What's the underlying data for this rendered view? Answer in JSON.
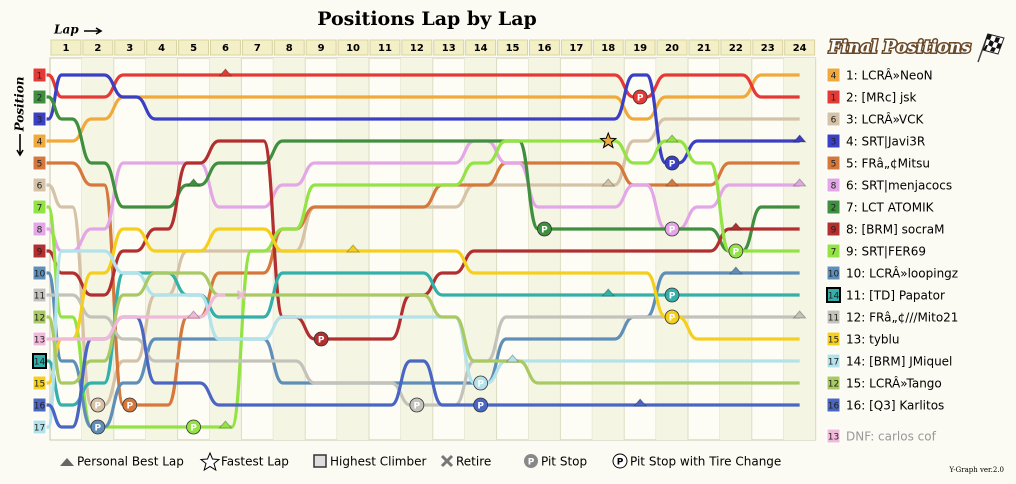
{
  "chart_data": {
    "type": "lap_chart",
    "title": "Positions Lap by Lap",
    "x_label": "Lap",
    "y_label": "Position",
    "subtitle": "Final Positions",
    "laps": [
      1,
      2,
      3,
      4,
      5,
      6,
      7,
      8,
      9,
      10,
      11,
      12,
      13,
      14,
      15,
      16,
      17,
      18,
      19,
      20,
      21,
      22,
      23,
      24
    ],
    "pit_symbol": "P",
    "series": [
      {
        "name": "1: LCRÂ»NeoN",
        "color": "#f2a93b",
        "start": 4,
        "values": [
          4,
          3,
          2,
          2,
          2,
          2,
          2,
          2,
          2,
          2,
          2,
          2,
          2,
          2,
          2,
          2,
          2,
          2,
          3,
          2,
          2,
          2,
          1,
          1
        ]
      },
      {
        "name": "2: [MRc] jsk",
        "color": "#e53935",
        "start": 1,
        "values": [
          2,
          2,
          1,
          1,
          1,
          1,
          1,
          1,
          1,
          1,
          1,
          1,
          1,
          1,
          1,
          1,
          1,
          1,
          2,
          1,
          1,
          1,
          2,
          2
        ],
        "pits": [
          19
        ],
        "pb_laps": [
          6
        ]
      },
      {
        "name": "3: LCRÂ»VCK",
        "color": "#d6c2a6",
        "start": 6,
        "values": [
          7,
          16,
          14,
          11,
          9,
          9,
          9,
          9,
          7,
          7,
          7,
          7,
          7,
          6,
          6,
          6,
          6,
          6,
          4,
          3,
          3,
          3,
          3,
          3
        ],
        "pits": [
          2
        ],
        "pb_laps": [
          18
        ]
      },
      {
        "name": "4: SRT|Javi3R",
        "color": "#3a3fc4",
        "start": 3,
        "values": [
          1,
          1,
          2,
          3,
          3,
          3,
          3,
          3,
          3,
          3,
          3,
          3,
          3,
          3,
          3,
          3,
          3,
          3,
          1,
          5,
          4,
          4,
          4,
          4
        ],
        "pits": [
          20
        ],
        "pb_laps": [
          24
        ]
      },
      {
        "name": "5: FRâ„¢Mitsu",
        "color": "#d6783c",
        "start": 5,
        "values": [
          5,
          6,
          16,
          16,
          12,
          10,
          10,
          8,
          7,
          7,
          7,
          7,
          6,
          6,
          5,
          5,
          5,
          5,
          6,
          6,
          6,
          5,
          5,
          5
        ],
        "pits": [
          3
        ],
        "pb_laps": [
          20
        ]
      },
      {
        "name": "6: SRT|menjacocs",
        "color": "#e3a6e6",
        "start": 8,
        "values": [
          9,
          8,
          5,
          5,
          5,
          7,
          7,
          6,
          5,
          5,
          5,
          5,
          5,
          4,
          5,
          7,
          7,
          7,
          6,
          8,
          7,
          6,
          6,
          6
        ],
        "pits": [
          20
        ],
        "pb_laps": [
          24
        ]
      },
      {
        "name": "7: LCT ATOMIK",
        "color": "#3f8f3f",
        "start": 2,
        "values": [
          3,
          5,
          7,
          7,
          6,
          5,
          5,
          4,
          4,
          4,
          4,
          4,
          4,
          4,
          4,
          8,
          8,
          8,
          8,
          8,
          8,
          9,
          7,
          7
        ],
        "pits": [
          16
        ],
        "pb_laps": [
          5
        ]
      },
      {
        "name": "8: [BRM] socraM",
        "color": "#b22f2f",
        "start": 9,
        "values": [
          10,
          11,
          9,
          8,
          5,
          4,
          4,
          12,
          13,
          13,
          13,
          11,
          10,
          9,
          9,
          9,
          9,
          9,
          9,
          9,
          9,
          8,
          8,
          8
        ],
        "pits": [
          9
        ],
        "pb_laps": [
          22
        ]
      },
      {
        "name": "9: SRT|FER69",
        "color": "#93e345",
        "start": 7,
        "values": [
          12,
          17,
          17,
          17,
          17,
          17,
          9,
          8,
          6,
          6,
          6,
          6,
          6,
          5,
          4,
          4,
          4,
          4,
          5,
          4,
          5,
          9,
          9,
          9
        ],
        "pits": [
          5,
          22
        ],
        "pb_laps": [
          6,
          20
        ]
      },
      {
        "name": "10: LCRÂ»loopingz",
        "color": "#5f8fb8",
        "start": 10,
        "values": [
          14,
          17,
          15,
          13,
          13,
          13,
          13,
          15,
          15,
          15,
          15,
          15,
          15,
          15,
          13,
          13,
          13,
          13,
          12,
          10,
          10,
          10,
          10,
          10
        ],
        "pits": [
          2
        ],
        "pb_laps": [
          22
        ]
      },
      {
        "name": "11: [TD] Papator",
        "color": "#33b0aa",
        "start": 14,
        "values": [
          16,
          15,
          10,
          10,
          11,
          12,
          12,
          10,
          10,
          10,
          10,
          10,
          11,
          11,
          11,
          11,
          11,
          11,
          11,
          11,
          11,
          11,
          11,
          11
        ],
        "pits": [
          20
        ],
        "pb_laps": [
          18
        ],
        "highest_climber": true
      },
      {
        "name": "12: FRâ„¢///Mito21",
        "color": "#c3c3bb",
        "start": 11,
        "values": [
          11,
          12,
          13,
          14,
          14,
          14,
          14,
          14,
          15,
          15,
          15,
          16,
          16,
          14,
          12,
          12,
          12,
          12,
          12,
          12,
          12,
          12,
          12,
          12
        ],
        "pits": [
          12
        ],
        "pb_laps": [
          24
        ]
      },
      {
        "name": "13: tyblu",
        "color": "#f5cf1e",
        "start": 15,
        "values": [
          13,
          10,
          8,
          9,
          9,
          8,
          8,
          9,
          9,
          9,
          9,
          9,
          9,
          10,
          10,
          10,
          10,
          10,
          10,
          12,
          13,
          13,
          13,
          13
        ],
        "pits": [
          20
        ],
        "pb_laps": [
          10
        ]
      },
      {
        "name": "14: [BRM] JMiquel",
        "color": "#b3e2ea",
        "start": 17,
        "values": [
          9,
          9,
          10,
          11,
          11,
          13,
          13,
          12,
          12,
          12,
          12,
          12,
          12,
          15,
          14,
          14,
          14,
          14,
          14,
          14,
          14,
          14,
          14,
          14
        ],
        "pits": [
          14
        ],
        "pb_laps": [
          15
        ]
      },
      {
        "name": "15: LCRÂ»Tango",
        "color": "#a9c963",
        "start": 12,
        "values": [
          15,
          14,
          11,
          10,
          10,
          11,
          11,
          11,
          11,
          11,
          11,
          11,
          12,
          14,
          14,
          15,
          15,
          15,
          15,
          15,
          15,
          15,
          15,
          15
        ]
      },
      {
        "name": "16: [Q3] Karlitos",
        "color": "#4a66c2",
        "start": 16,
        "values": [
          17,
          13,
          12,
          15,
          15,
          16,
          16,
          16,
          16,
          16,
          16,
          14,
          16,
          16,
          16,
          16,
          16,
          16,
          16,
          16,
          16,
          16,
          16,
          16
        ],
        "pits": [
          14
        ],
        "pb_laps": [
          19
        ]
      },
      {
        "name": "DNF: carlos cof",
        "color": "#f1b9d9",
        "start": 13,
        "values": [
          13,
          13,
          12,
          12,
          12,
          11,
          null,
          null,
          null,
          null,
          null,
          null,
          null,
          null,
          null,
          null,
          null,
          null,
          null,
          null,
          null,
          null,
          null,
          null
        ],
        "pb_laps": [
          5
        ],
        "retired_lap": 6
      }
    ],
    "fastest_lap": {
      "series": 8,
      "lap": 18
    },
    "legend": [
      "Personal Best Lap",
      "Fastest Lap",
      "Highest Climber",
      "Retire",
      "Pit Stop",
      "Pit Stop with Tire Change"
    ],
    "footer": "Y-Graph ver.2.0"
  }
}
